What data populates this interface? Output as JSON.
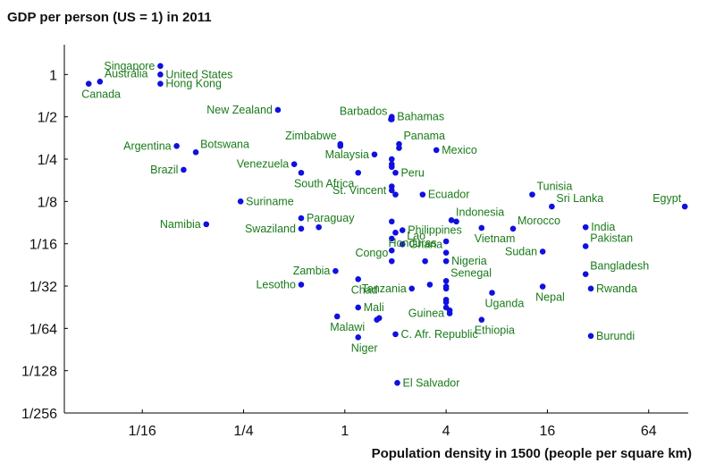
{
  "colors": {
    "point": "#1010e0",
    "label": "#1a7a1a",
    "axis": "#000000"
  },
  "chart_data": {
    "type": "scatter",
    "title": "GDP per person (US = 1) in 2011",
    "xlabel": "Population density in 1500 (people per square km)",
    "ylabel": "",
    "x_scale": "log2",
    "y_scale": "log2",
    "xlim": [
      0.0215,
      110
    ],
    "ylim": [
      0.0039063,
      1.63
    ],
    "grid": false,
    "x_ticks": [
      {
        "value": 0.0625,
        "label": "1/16"
      },
      {
        "value": 0.25,
        "label": "1/4"
      },
      {
        "value": 1,
        "label": "1"
      },
      {
        "value": 4,
        "label": "4"
      },
      {
        "value": 16,
        "label": "16"
      },
      {
        "value": 64,
        "label": "64"
      }
    ],
    "y_ticks": [
      {
        "value": 1,
        "label": "1"
      },
      {
        "value": 0.5,
        "label": "1/2"
      },
      {
        "value": 0.25,
        "label": "1/4"
      },
      {
        "value": 0.125,
        "label": "1/8"
      },
      {
        "value": 0.0625,
        "label": "1/16"
      },
      {
        "value": 0.03125,
        "label": "1/32"
      },
      {
        "value": 0.015625,
        "label": "1/64"
      },
      {
        "value": 0.0078125,
        "label": "1/128"
      },
      {
        "value": 0.0039063,
        "label": "1/256"
      }
    ],
    "points": [
      {
        "label": "Singapore",
        "x": 0.08,
        "y": 1.15,
        "pos": "left"
      },
      {
        "label": "United States",
        "x": 0.08,
        "y": 1.0,
        "pos": "right"
      },
      {
        "label": "Australia",
        "x": 0.035,
        "y": 0.89,
        "pos": "upright"
      },
      {
        "label": "Canada",
        "x": 0.03,
        "y": 0.86,
        "pos": "below"
      },
      {
        "label": "Hong Kong",
        "x": 0.08,
        "y": 0.86,
        "pos": "right"
      },
      {
        "label": "New Zealand",
        "x": 0.4,
        "y": 0.56,
        "pos": "left"
      },
      {
        "label": "Barbados",
        "x": 1.88,
        "y": 0.48,
        "pos": "upleft"
      },
      {
        "label": "Bahamas",
        "x": 1.9,
        "y": 0.5,
        "pos": "right"
      },
      {
        "label": "Panama",
        "x": 2.1,
        "y": 0.32,
        "pos": "upright"
      },
      {
        "label": "Zimbabwe",
        "x": 0.94,
        "y": 0.32,
        "pos": "upleft"
      },
      {
        "label": "Argentina",
        "x": 0.1,
        "y": 0.31,
        "pos": "left"
      },
      {
        "label": "Botswana",
        "x": 0.13,
        "y": 0.28,
        "pos": "upright"
      },
      {
        "label": "Mexico",
        "x": 3.5,
        "y": 0.29,
        "pos": "right"
      },
      {
        "label": "Malaysia",
        "x": 1.5,
        "y": 0.27,
        "pos": "left"
      },
      {
        "label": "Venezuela",
        "x": 0.5,
        "y": 0.23,
        "pos": "left"
      },
      {
        "label": "Brazil",
        "x": 0.11,
        "y": 0.21,
        "pos": "left"
      },
      {
        "label": "Peru",
        "x": 2.0,
        "y": 0.2,
        "pos": "right"
      },
      {
        "label": "South Africa",
        "x": 0.55,
        "y": 0.2,
        "pos": "below"
      },
      {
        "label": "St. Vincent",
        "x": 1.9,
        "y": 0.15,
        "pos": "left"
      },
      {
        "label": "Ecuador",
        "x": 2.9,
        "y": 0.14,
        "pos": "right"
      },
      {
        "label": "Tunisia",
        "x": 13.0,
        "y": 0.14,
        "pos": "upright"
      },
      {
        "label": "Egypt",
        "x": 105.0,
        "y": 0.115,
        "pos": "upleft"
      },
      {
        "label": "Sri Lanka",
        "x": 17.0,
        "y": 0.115,
        "pos": "upright"
      },
      {
        "label": "Suriname",
        "x": 0.24,
        "y": 0.125,
        "pos": "right"
      },
      {
        "label": "Indonesia",
        "x": 4.3,
        "y": 0.092,
        "pos": "upright"
      },
      {
        "label": "Namibia",
        "x": 0.15,
        "y": 0.086,
        "pos": "left"
      },
      {
        "label": "Paraguay",
        "x": 0.55,
        "y": 0.095,
        "pos": "right"
      },
      {
        "label": "Swaziland",
        "x": 0.55,
        "y": 0.08,
        "pos": "left"
      },
      {
        "label": "Philippines",
        "x": 2.2,
        "y": 0.078,
        "pos": "right"
      },
      {
        "label": "Morocco",
        "x": 10.0,
        "y": 0.08,
        "pos": "upright"
      },
      {
        "label": "India",
        "x": 27.0,
        "y": 0.082,
        "pos": "right"
      },
      {
        "label": "Vietnam",
        "x": 6.5,
        "y": 0.081,
        "pos": "below"
      },
      {
        "label": "Honduras",
        "x": 2.0,
        "y": 0.075,
        "pos": "below"
      },
      {
        "label": "Lao",
        "x": 2.2,
        "y": 0.062,
        "pos": "upright"
      },
      {
        "label": "Pakistan",
        "x": 27.0,
        "y": 0.06,
        "pos": "upright"
      },
      {
        "label": "Ghana",
        "x": 4.0,
        "y": 0.054,
        "pos": "upleft"
      },
      {
        "label": "Sudan",
        "x": 15.0,
        "y": 0.055,
        "pos": "left"
      },
      {
        "label": "Congo",
        "x": 1.9,
        "y": 0.047,
        "pos": "upleft"
      },
      {
        "label": "Nigeria",
        "x": 4.0,
        "y": 0.047,
        "pos": "right"
      },
      {
        "label": "Zambia",
        "x": 0.88,
        "y": 0.04,
        "pos": "left"
      },
      {
        "label": "Bangladesh",
        "x": 27.0,
        "y": 0.038,
        "pos": "upright"
      },
      {
        "label": "Senegal",
        "x": 4.0,
        "y": 0.034,
        "pos": "upright"
      },
      {
        "label": "Chad",
        "x": 1.2,
        "y": 0.035,
        "pos": "below"
      },
      {
        "label": "Lesotho",
        "x": 0.55,
        "y": 0.032,
        "pos": "left"
      },
      {
        "label": "Rwanda",
        "x": 29.0,
        "y": 0.03,
        "pos": "right"
      },
      {
        "label": "Nepal",
        "x": 15.0,
        "y": 0.031,
        "pos": "below"
      },
      {
        "label": "Tanzania",
        "x": 2.5,
        "y": 0.03,
        "pos": "left"
      },
      {
        "label": "Uganda",
        "x": 7.5,
        "y": 0.028,
        "pos": "below"
      },
      {
        "label": "Mali",
        "x": 1.2,
        "y": 0.022,
        "pos": "right"
      },
      {
        "label": "Guinea",
        "x": 4.2,
        "y": 0.02,
        "pos": "left"
      },
      {
        "label": "Malawi",
        "x": 0.9,
        "y": 0.019,
        "pos": "below"
      },
      {
        "label": "Ethiopia",
        "x": 6.5,
        "y": 0.018,
        "pos": "below"
      },
      {
        "label": "C. Afr. Republic",
        "x": 2.0,
        "y": 0.0142,
        "pos": "right"
      },
      {
        "label": "Burundi",
        "x": 29.0,
        "y": 0.0138,
        "pos": "right"
      },
      {
        "label": "Niger",
        "x": 1.2,
        "y": 0.0135,
        "pos": "below"
      },
      {
        "label": "El Salvador",
        "x": 2.05,
        "y": 0.0064,
        "pos": "right"
      }
    ],
    "unlabeled_points": [
      {
        "x": 0.94,
        "y": 0.31
      },
      {
        "x": 1.9,
        "y": 0.48
      },
      {
        "x": 2.1,
        "y": 0.3
      },
      {
        "x": 1.9,
        "y": 0.25
      },
      {
        "x": 1.9,
        "y": 0.23
      },
      {
        "x": 1.9,
        "y": 0.22
      },
      {
        "x": 1.9,
        "y": 0.16
      },
      {
        "x": 2.0,
        "y": 0.14
      },
      {
        "x": 1.2,
        "y": 0.2
      },
      {
        "x": 1.9,
        "y": 0.09
      },
      {
        "x": 1.9,
        "y": 0.068
      },
      {
        "x": 1.9,
        "y": 0.056
      },
      {
        "x": 0.7,
        "y": 0.082
      },
      {
        "x": 4.0,
        "y": 0.065
      },
      {
        "x": 4.6,
        "y": 0.09
      },
      {
        "x": 3.0,
        "y": 0.047
      },
      {
        "x": 3.2,
        "y": 0.032
      },
      {
        "x": 4.0,
        "y": 0.031
      },
      {
        "x": 4.0,
        "y": 0.03
      },
      {
        "x": 4.0,
        "y": 0.025
      },
      {
        "x": 4.0,
        "y": 0.024
      },
      {
        "x": 4.0,
        "y": 0.022
      },
      {
        "x": 4.2,
        "y": 0.021
      },
      {
        "x": 1.6,
        "y": 0.0185
      },
      {
        "x": 1.55,
        "y": 0.018
      }
    ]
  }
}
